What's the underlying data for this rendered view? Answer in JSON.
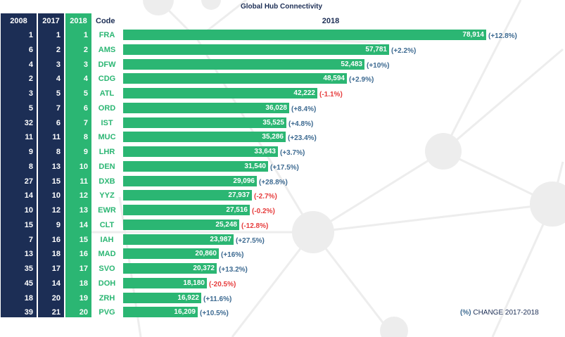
{
  "chart_data": {
    "type": "bar",
    "orientation": "horizontal",
    "title": "Global Hub Connectivity",
    "series_label": "2018",
    "columns": [
      "2008",
      "2017",
      "2018",
      "Code"
    ],
    "legend": "CHANGE 2017-2018",
    "legend_marker": "(%)",
    "max_value": 78914,
    "rows": [
      {
        "r2008": "1",
        "r2017": "1",
        "r2018": "1",
        "code": "FRA",
        "value": 78914,
        "value_label": "78,914",
        "change": "(+12.8%)",
        "neg": false
      },
      {
        "r2008": "6",
        "r2017": "2",
        "r2018": "2",
        "code": "AMS",
        "value": 57781,
        "value_label": "57,781",
        "change": "(+2.2%)",
        "neg": false
      },
      {
        "r2008": "4",
        "r2017": "3",
        "r2018": "3",
        "code": "DFW",
        "value": 52483,
        "value_label": "52,483",
        "change": "(+10%)",
        "neg": false
      },
      {
        "r2008": "2",
        "r2017": "4",
        "r2018": "4",
        "code": "CDG",
        "value": 48594,
        "value_label": "48,594",
        "change": "(+2.9%)",
        "neg": false
      },
      {
        "r2008": "3",
        "r2017": "5",
        "r2018": "5",
        "code": "ATL",
        "value": 42222,
        "value_label": "42,222",
        "change": "(-1.1%)",
        "neg": true
      },
      {
        "r2008": "5",
        "r2017": "7",
        "r2018": "6",
        "code": "ORD",
        "value": 36028,
        "value_label": "36,028",
        "change": "(+8.4%)",
        "neg": false
      },
      {
        "r2008": "32",
        "r2017": "6",
        "r2018": "7",
        "code": "IST",
        "value": 35525,
        "value_label": "35,525",
        "change": "(+4.8%)",
        "neg": false
      },
      {
        "r2008": "11",
        "r2017": "11",
        "r2018": "8",
        "code": "MUC",
        "value": 35286,
        "value_label": "35,286",
        "change": "(+23.4%)",
        "neg": false
      },
      {
        "r2008": "9",
        "r2017": "8",
        "r2018": "9",
        "code": "LHR",
        "value": 33643,
        "value_label": "33,643",
        "change": "(+3.7%)",
        "neg": false
      },
      {
        "r2008": "8",
        "r2017": "13",
        "r2018": "10",
        "code": "DEN",
        "value": 31540,
        "value_label": "31,540",
        "change": "(+17.5%)",
        "neg": false
      },
      {
        "r2008": "27",
        "r2017": "15",
        "r2018": "11",
        "code": "DXB",
        "value": 29096,
        "value_label": "29,096",
        "change": "(+28.8%)",
        "neg": false
      },
      {
        "r2008": "14",
        "r2017": "10",
        "r2018": "12",
        "code": "YYZ",
        "value": 27937,
        "value_label": "27,937",
        "change": "(-2.7%)",
        "neg": true
      },
      {
        "r2008": "10",
        "r2017": "12",
        "r2018": "13",
        "code": "EWR",
        "value": 27516,
        "value_label": "27,516",
        "change": "(-0.2%)",
        "neg": true
      },
      {
        "r2008": "15",
        "r2017": "9",
        "r2018": "14",
        "code": "CLT",
        "value": 25248,
        "value_label": "25,248",
        "change": "(-12.8%)",
        "neg": true
      },
      {
        "r2008": "7",
        "r2017": "16",
        "r2018": "15",
        "code": "IAH",
        "value": 23987,
        "value_label": "23,987",
        "change": "(+27.5%)",
        "neg": false
      },
      {
        "r2008": "13",
        "r2017": "18",
        "r2018": "16",
        "code": "MAD",
        "value": 20860,
        "value_label": "20,860",
        "change": "(+16%)",
        "neg": false
      },
      {
        "r2008": "35",
        "r2017": "17",
        "r2018": "17",
        "code": "SVO",
        "value": 20372,
        "value_label": "20,372",
        "change": "(+13.2%)",
        "neg": false
      },
      {
        "r2008": "45",
        "r2017": "14",
        "r2018": "18",
        "code": "DOH",
        "value": 18180,
        "value_label": "18,180",
        "change": "(-20.5%)",
        "neg": true
      },
      {
        "r2008": "18",
        "r2017": "20",
        "r2018": "19",
        "code": "ZRH",
        "value": 16922,
        "value_label": "16,922",
        "change": "(+11.6%)",
        "neg": false
      },
      {
        "r2008": "39",
        "r2017": "21",
        "r2018": "20",
        "code": "PVG",
        "value": 16209,
        "value_label": "16,209",
        "change": "(+10.5%)",
        "neg": false
      }
    ]
  },
  "colors": {
    "navy": "#1c2e55",
    "green": "#2bb673",
    "positive": "#3d6a91",
    "negative": "#e63c3c"
  }
}
